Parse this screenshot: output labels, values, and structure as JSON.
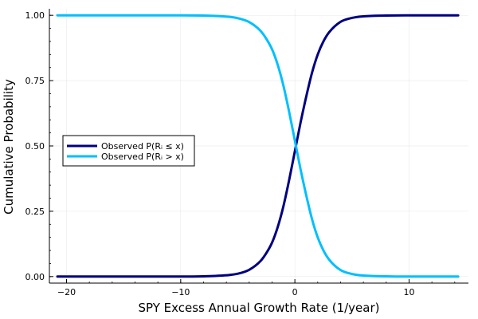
{
  "chart_data": {
    "type": "line",
    "title": "",
    "xlabel": "SPY Excess Annual Growth Rate (1/year)",
    "ylabel": "Cumulative Probability",
    "xlim": [
      -21.5,
      15.2
    ],
    "ylim": [
      -0.025,
      1.025
    ],
    "x_ticks": [
      -20,
      -10,
      0,
      10
    ],
    "x_tick_labels": [
      "−20",
      "−10",
      "0",
      "10"
    ],
    "y_ticks": [
      0,
      0.25,
      0.5,
      0.75,
      1.0
    ],
    "y_tick_labels": [
      "0.00",
      "0.25",
      "0.50",
      "0.75",
      "1.00"
    ],
    "grid": true,
    "legend_position": "left",
    "x_range": [
      -20.8,
      14.3
    ],
    "series": [
      {
        "name": "Observed P(Rᵢ ≤ x)",
        "color": "#000080",
        "x": [
          -20.8,
          -15,
          -10,
          -8,
          -6,
          -5,
          -4,
          -3,
          -2.5,
          -2,
          -1.5,
          -1,
          -0.5,
          0,
          0.5,
          1,
          1.5,
          2,
          2.5,
          3,
          4,
          5,
          6,
          8,
          10,
          14.3
        ],
        "y": [
          0.0,
          0.0,
          0.0,
          0.001,
          0.005,
          0.011,
          0.026,
          0.06,
          0.09,
          0.13,
          0.19,
          0.27,
          0.37,
          0.48,
          0.59,
          0.69,
          0.78,
          0.85,
          0.9,
          0.935,
          0.975,
          0.99,
          0.996,
          0.999,
          1.0,
          1.0
        ]
      },
      {
        "name": "Observed P(Rᵢ > x)",
        "color": "#00bfff",
        "x": [
          -20.8,
          -15,
          -10,
          -8,
          -6,
          -5,
          -4,
          -3,
          -2.5,
          -2,
          -1.5,
          -1,
          -0.5,
          0,
          0.5,
          1,
          1.5,
          2,
          2.5,
          3,
          4,
          5,
          6,
          8,
          10,
          14.3
        ],
        "y": [
          1.0,
          1.0,
          1.0,
          0.999,
          0.995,
          0.989,
          0.974,
          0.94,
          0.91,
          0.87,
          0.81,
          0.73,
          0.63,
          0.52,
          0.41,
          0.31,
          0.22,
          0.15,
          0.1,
          0.065,
          0.025,
          0.01,
          0.004,
          0.001,
          0.0,
          0.0
        ]
      }
    ]
  }
}
